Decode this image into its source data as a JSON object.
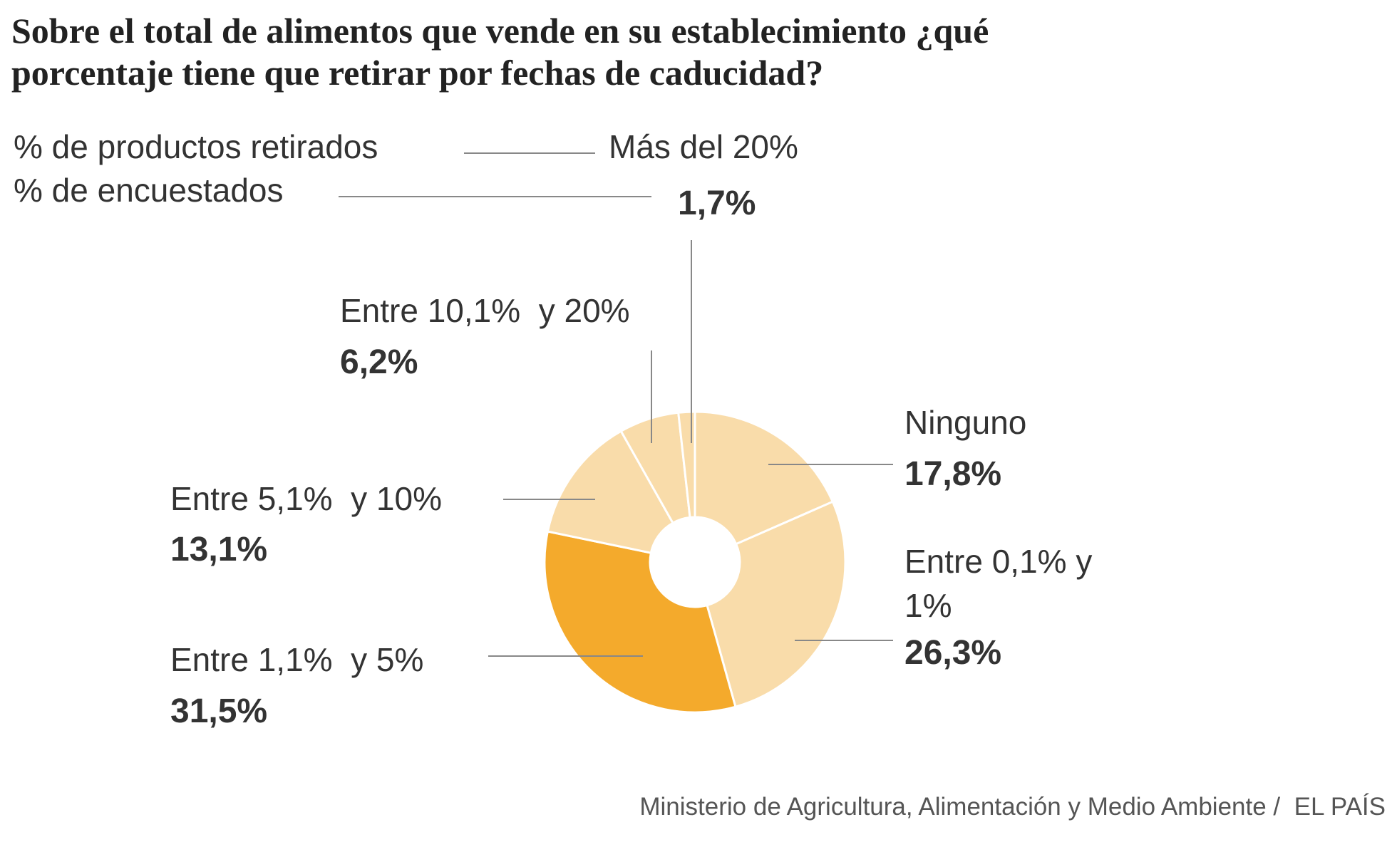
{
  "chart_data": {
    "type": "pie",
    "title": "Sobre el total de alimentos que vende en su establecimiento ¿qué porcentaje tiene que retirar por fechas de caducidad?",
    "key_labels": [
      "% de productos retirados",
      "% de encuestados"
    ],
    "categories": [
      "Ninguno",
      "Entre 0,1% y 1%",
      "Entre 1,1%  y 5%",
      "Entre 5,1%  y 10%",
      "Entre 10,1%  y 20%",
      "Más del 20%"
    ],
    "values": [
      17.8,
      26.3,
      31.5,
      13.1,
      6.2,
      1.7
    ],
    "value_labels": [
      "17,8%",
      "26,3%",
      "31,5%",
      "13,1%",
      "6,2%",
      "1,7%"
    ],
    "colors": [
      "#f9dcaa",
      "#f9dcaa",
      "#f4aa2c",
      "#f9dcaa",
      "#f9dcaa",
      "#f9dcaa"
    ],
    "source": "Ministerio de Agricultura, Alimentación y Medio Ambiente /  EL PAÍS"
  }
}
